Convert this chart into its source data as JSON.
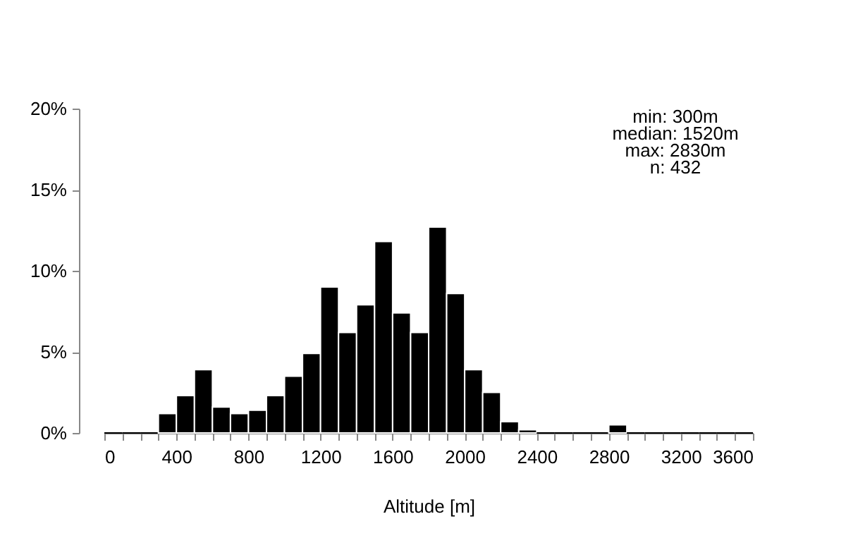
{
  "chart_data": {
    "type": "histogram",
    "xlabel": "Altitude [m]",
    "bins": [
      0,
      100,
      200,
      300,
      400,
      500,
      600,
      700,
      800,
      900,
      1000,
      1100,
      1200,
      1300,
      1400,
      1500,
      1600,
      1700,
      1800,
      1900,
      2000,
      2100,
      2200,
      2300,
      2400,
      2500,
      2600,
      2700,
      2800,
      2900,
      3000,
      3100,
      3200,
      3300,
      3400,
      3500,
      3600
    ],
    "values": [
      0,
      0,
      0,
      1.2,
      2.3,
      3.9,
      1.6,
      1.2,
      1.4,
      2.3,
      3.5,
      4.9,
      9.0,
      6.2,
      7.9,
      11.8,
      7.4,
      6.2,
      12.7,
      8.6,
      3.9,
      2.5,
      0.7,
      0.2,
      0,
      0,
      0,
      0,
      0.5,
      0,
      0,
      0,
      0,
      0,
      0,
      0
    ],
    "color": "#000000",
    "xlim": [
      0,
      3600
    ],
    "xticks": [
      0,
      {
        "value": 100,
        "label": null
      },
      {
        "value": 200,
        "label": null
      },
      {
        "value": 300,
        "label": null
      },
      400,
      {
        "value": 500,
        "label": null
      },
      {
        "value": 600,
        "label": null
      },
      {
        "value": 700,
        "label": null
      },
      800,
      {
        "value": 900,
        "label": null
      },
      {
        "value": 1000,
        "label": null
      },
      {
        "value": 1100,
        "label": null
      },
      1200,
      {
        "value": 1300,
        "label": null
      },
      {
        "value": 1400,
        "label": null
      },
      {
        "value": 1500,
        "label": null
      },
      1600,
      {
        "value": 1700,
        "label": null
      },
      {
        "value": 1800,
        "label": null
      },
      {
        "value": 1900,
        "label": null
      },
      2000,
      {
        "value": 2100,
        "label": null
      },
      {
        "value": 2200,
        "label": null
      },
      {
        "value": 2300,
        "label": null
      },
      2400,
      {
        "value": 2500,
        "label": null
      },
      {
        "value": 2600,
        "label": null
      },
      {
        "value": 2700,
        "label": null
      },
      2800,
      {
        "value": 2900,
        "label": null
      },
      {
        "value": 3000,
        "label": null
      },
      {
        "value": 3100,
        "label": null
      },
      3200,
      {
        "value": 3300,
        "label": null
      },
      {
        "value": 3400,
        "label": null
      },
      {
        "value": 3500,
        "label": null
      },
      3600
    ],
    "ylim": [
      0,
      20
    ],
    "yticks": [
      {
        "value": 0,
        "label": "0%"
      },
      {
        "value": 5,
        "label": "5%"
      },
      {
        "value": 10,
        "label": "10%"
      },
      {
        "value": 15,
        "label": "15%"
      },
      {
        "value": 20,
        "label": "20%"
      }
    ],
    "grid": false,
    "annotations": [
      "min: 300m",
      "median: 1520m",
      "max: 2830m",
      "n:  432"
    ]
  }
}
